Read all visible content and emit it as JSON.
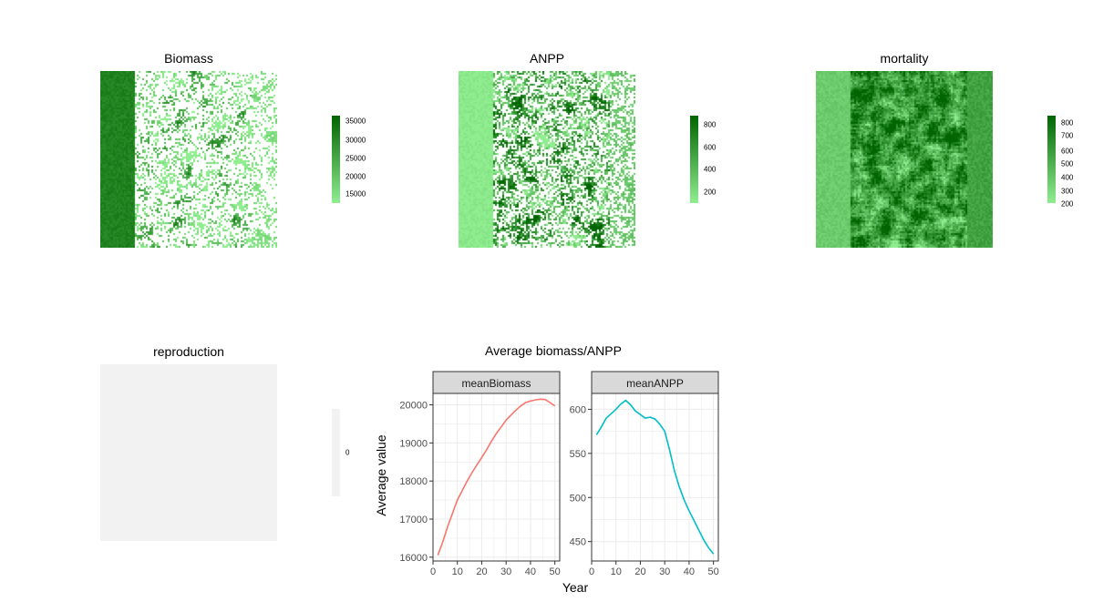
{
  "palette": {
    "light": "#90EE90",
    "dark": "#006400",
    "flat": "#F2F2F2"
  },
  "maps": [
    {
      "title": "Biomass",
      "legend_ticks": [
        "35000",
        "30000",
        "25000",
        "20000",
        "15000"
      ]
    },
    {
      "title": "ANPP",
      "legend_ticks": [
        "800",
        "600",
        "400",
        "200"
      ]
    },
    {
      "title": "mortality",
      "legend_ticks": [
        "800",
        "700",
        "600",
        "500",
        "400",
        "300",
        "200"
      ]
    },
    {
      "title": "reproduction",
      "legend_ticks": [
        "0"
      ]
    }
  ],
  "chart_data": {
    "type": "line",
    "title": "Average biomass/ANPP",
    "xlabel": "Year",
    "ylabel": "Average value",
    "grid": true,
    "facets": [
      {
        "strip": "meanBiomass",
        "color": "#F8766D",
        "xlim": [
          0,
          52
        ],
        "ylim": [
          15900,
          20300
        ],
        "x_ticks": [
          "0",
          "10",
          "20",
          "30",
          "40",
          "50"
        ],
        "y_ticks": [
          "16000",
          "17000",
          "18000",
          "19000",
          "20000"
        ],
        "x": [
          2,
          4,
          6,
          8,
          10,
          12,
          14,
          16,
          18,
          20,
          22,
          24,
          26,
          28,
          30,
          32,
          34,
          36,
          38,
          40,
          42,
          44,
          46,
          48,
          50
        ],
        "values": [
          16050,
          16400,
          16800,
          17150,
          17500,
          17750,
          18000,
          18220,
          18420,
          18620,
          18820,
          19050,
          19250,
          19420,
          19600,
          19730,
          19860,
          19970,
          20060,
          20100,
          20130,
          20150,
          20140,
          20060,
          19970
        ]
      },
      {
        "strip": "meanANPP",
        "color": "#00BFC4",
        "xlim": [
          0,
          52
        ],
        "ylim": [
          428,
          618
        ],
        "x_ticks": [
          "0",
          "10",
          "20",
          "30",
          "40",
          "50"
        ],
        "y_ticks": [
          "450",
          "500",
          "550",
          "600"
        ],
        "x": [
          2,
          4,
          6,
          8,
          10,
          12,
          14,
          16,
          18,
          20,
          22,
          24,
          26,
          28,
          30,
          32,
          34,
          36,
          38,
          40,
          42,
          44,
          46,
          48,
          50
        ],
        "values": [
          571,
          580,
          590,
          595,
          600,
          606,
          610,
          605,
          598,
          594,
          590,
          591,
          589,
          583,
          575,
          554,
          530,
          512,
          497,
          485,
          474,
          463,
          452,
          443,
          436
        ]
      }
    ]
  }
}
